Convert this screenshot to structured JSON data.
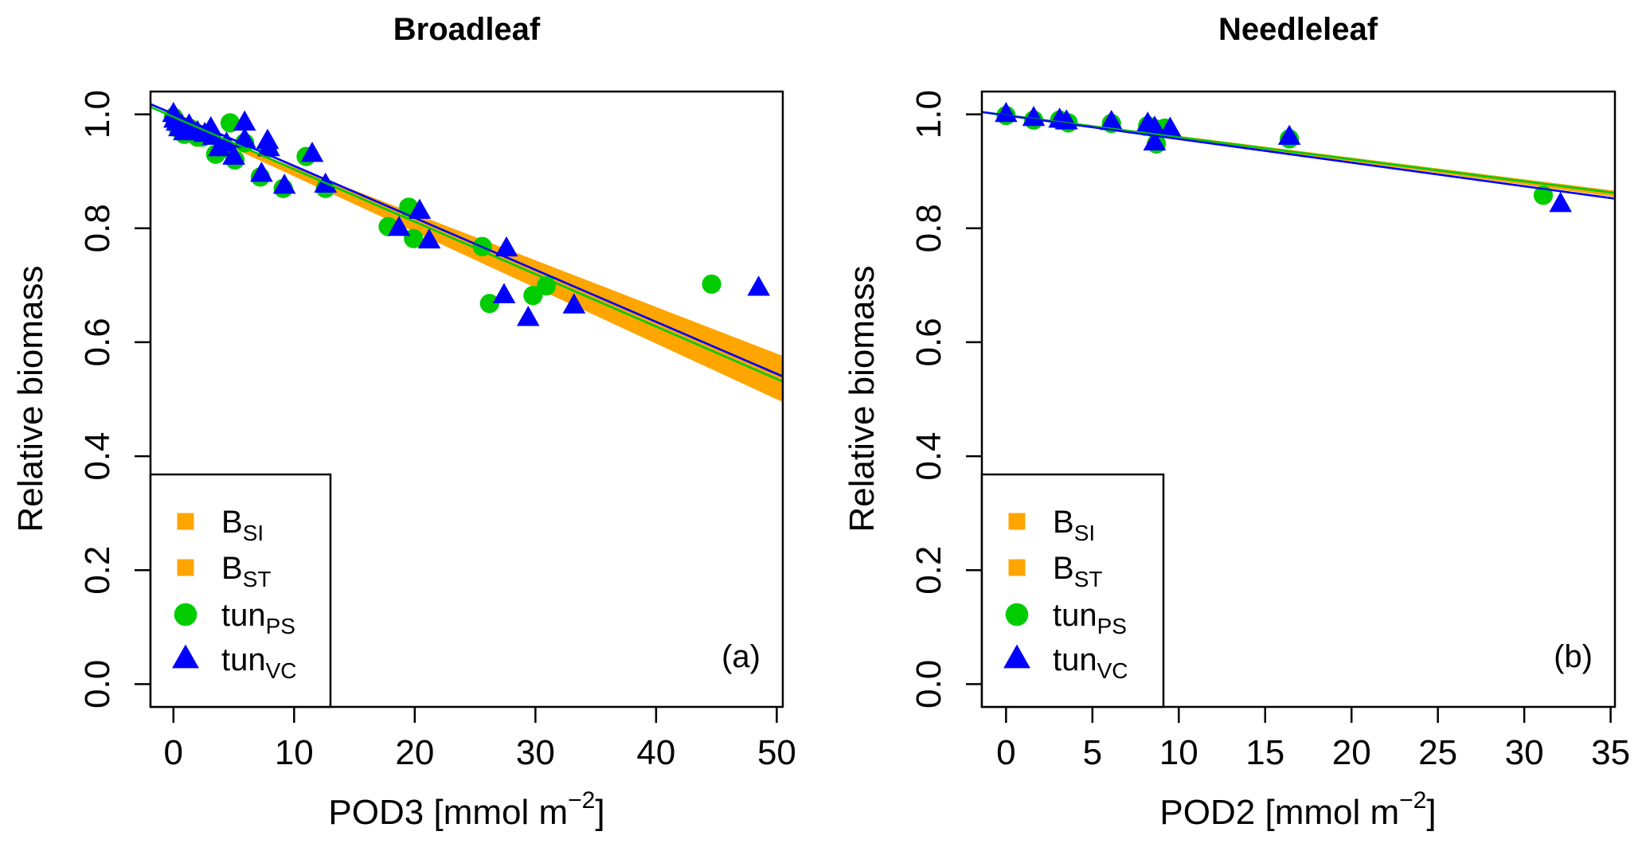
{
  "chart_data": [
    {
      "type": "scatter",
      "panel_id": "a",
      "title": "Broadleaf",
      "panel_tag": "(a)",
      "xlabel": "POD3 [mmol m",
      "xlabel_sup": "−2",
      "xlabel_end": "]",
      "ylabel": "Relative biomass",
      "xlim": [
        -1.9,
        50.5
      ],
      "ylim": [
        -0.04,
        1.04
      ],
      "xticks": [
        0,
        10,
        20,
        30,
        40,
        50
      ],
      "yticks": [
        0.0,
        0.2,
        0.4,
        0.6,
        0.8,
        1.0
      ],
      "ytick_labels": [
        "0.0",
        "0.2",
        "0.4",
        "0.6",
        "0.8",
        "1.0"
      ],
      "grid": false,
      "legend_position": "bottom-left",
      "legend": [
        {
          "label": "B",
          "sub": "SI",
          "marker": "square",
          "color": "#FFA500"
        },
        {
          "label": "B",
          "sub": "ST",
          "marker": "square",
          "color": "#FFA500"
        },
        {
          "label": "tun",
          "sub": "PS",
          "marker": "circle",
          "color": "#00CC00"
        },
        {
          "label": "tun",
          "sub": "VC",
          "marker": "triangle",
          "color": "#0000FF"
        }
      ],
      "band": {
        "name": "B range (B_SI to B_ST)",
        "color": "#FFA500",
        "x": [
          4.2,
          50.5
        ],
        "upper": [
          0.955,
          0.576
        ],
        "lower": [
          0.948,
          0.495
        ]
      },
      "fit_lines": [
        {
          "name": "tun_PS fit",
          "color": "#00CC00",
          "x": [
            -1.9,
            50.5
          ],
          "y": [
            1.013,
            0.531
          ]
        },
        {
          "name": "tun_VC fit",
          "color": "#0000FF",
          "x": [
            -1.9,
            50.5
          ],
          "y": [
            1.018,
            0.54
          ]
        }
      ],
      "series": [
        {
          "name": "tun_PS",
          "marker": "circle",
          "color": "#00CC00",
          "points": [
            [
              0.0,
              0.995
            ],
            [
              0.2,
              0.985
            ],
            [
              0.4,
              0.975
            ],
            [
              0.6,
              0.98
            ],
            [
              0.9,
              0.965
            ],
            [
              1.4,
              0.975
            ],
            [
              2.0,
              0.96
            ],
            [
              2.4,
              0.96
            ],
            [
              3.0,
              0.965
            ],
            [
              3.5,
              0.93
            ],
            [
              4.2,
              0.94
            ],
            [
              4.7,
              0.985
            ],
            [
              5.1,
              0.92
            ],
            [
              5.9,
              0.95
            ],
            [
              7.2,
              0.89
            ],
            [
              7.8,
              0.94
            ],
            [
              9.1,
              0.87
            ],
            [
              11.0,
              0.926
            ],
            [
              12.6,
              0.87
            ],
            [
              17.8,
              0.803
            ],
            [
              19.5,
              0.837
            ],
            [
              19.9,
              0.782
            ],
            [
              25.6,
              0.768
            ],
            [
              26.2,
              0.668
            ],
            [
              29.8,
              0.682
            ],
            [
              30.9,
              0.699
            ],
            [
              44.6,
              0.702
            ]
          ]
        },
        {
          "name": "tun_VC",
          "marker": "triangle",
          "color": "#0000FF",
          "points": [
            [
              0.0,
              1.0
            ],
            [
              0.1,
              0.99
            ],
            [
              0.3,
              0.985
            ],
            [
              0.5,
              0.975
            ],
            [
              0.7,
              0.98
            ],
            [
              0.9,
              0.968
            ],
            [
              1.3,
              0.98
            ],
            [
              2.0,
              0.968
            ],
            [
              2.6,
              0.965
            ],
            [
              3.1,
              0.975
            ],
            [
              3.3,
              0.96
            ],
            [
              3.8,
              0.94
            ],
            [
              4.4,
              0.948
            ],
            [
              5.0,
              0.925
            ],
            [
              5.9,
              0.985
            ],
            [
              5.9,
              0.955
            ],
            [
              7.3,
              0.895
            ],
            [
              7.8,
              0.953
            ],
            [
              7.9,
              0.94
            ],
            [
              9.2,
              0.874
            ],
            [
              11.5,
              0.93
            ],
            [
              12.6,
              0.876
            ],
            [
              18.7,
              0.8
            ],
            [
              20.4,
              0.83
            ],
            [
              21.2,
              0.778
            ],
            [
              27.4,
              0.682
            ],
            [
              27.6,
              0.764
            ],
            [
              29.4,
              0.642
            ],
            [
              33.2,
              0.664
            ],
            [
              48.5,
              0.695
            ]
          ]
        }
      ]
    },
    {
      "type": "scatter",
      "panel_id": "b",
      "title": "Needleleaf",
      "panel_tag": "(b)",
      "xlabel": "POD2 [mmol m",
      "xlabel_sup": "−2",
      "xlabel_end": "]",
      "ylabel": "Relative biomass",
      "xlim": [
        -1.4,
        35.25
      ],
      "ylim": [
        -0.04,
        1.04
      ],
      "xticks": [
        0,
        5,
        10,
        15,
        20,
        25,
        30,
        35
      ],
      "yticks": [
        0.0,
        0.2,
        0.4,
        0.6,
        0.8,
        1.0
      ],
      "ytick_labels": [
        "0.0",
        "0.2",
        "0.4",
        "0.6",
        "0.8",
        "1.0"
      ],
      "grid": false,
      "legend_position": "bottom-left",
      "legend": [
        {
          "label": "B",
          "sub": "SI",
          "marker": "square",
          "color": "#FFA500"
        },
        {
          "label": "B",
          "sub": "ST",
          "marker": "square",
          "color": "#FFA500"
        },
        {
          "label": "tun",
          "sub": "PS",
          "marker": "circle",
          "color": "#00CC00"
        },
        {
          "label": "tun",
          "sub": "VC",
          "marker": "triangle",
          "color": "#0000FF"
        }
      ],
      "band": {
        "name": "B range (B_SI to B_ST)",
        "color": "#FFA500",
        "x": [
          9.0,
          35.25
        ],
        "upper": [
          0.966,
          0.866
        ],
        "lower": [
          0.962,
          0.855
        ]
      },
      "fit_lines": [
        {
          "name": "tun_PS fit",
          "color": "#00CC00",
          "x": [
            -1.4,
            35.25
          ],
          "y": [
            1.004,
            0.862
          ]
        },
        {
          "name": "tun_VC fit",
          "color": "#0000FF",
          "x": [
            -1.4,
            35.25
          ],
          "y": [
            1.004,
            0.852
          ]
        }
      ],
      "series": [
        {
          "name": "tun_PS",
          "marker": "circle",
          "color": "#00CC00",
          "points": [
            [
              0.0,
              0.998
            ],
            [
              1.6,
              0.99
            ],
            [
              3.1,
              0.99
            ],
            [
              3.6,
              0.985
            ],
            [
              6.1,
              0.984
            ],
            [
              8.2,
              0.98
            ],
            [
              8.6,
              0.975
            ],
            [
              8.7,
              0.948
            ],
            [
              9.2,
              0.976
            ],
            [
              16.4,
              0.957
            ],
            [
              31.1,
              0.858
            ]
          ]
        },
        {
          "name": "tun_VC",
          "marker": "triangle",
          "color": "#0000FF",
          "points": [
            [
              0.0,
              1.0
            ],
            [
              1.6,
              0.993
            ],
            [
              3.1,
              0.99
            ],
            [
              3.5,
              0.987
            ],
            [
              6.1,
              0.986
            ],
            [
              8.2,
              0.983
            ],
            [
              8.6,
              0.976
            ],
            [
              8.6,
              0.95
            ],
            [
              9.5,
              0.974
            ],
            [
              16.4,
              0.96
            ],
            [
              32.1,
              0.842
            ]
          ]
        }
      ]
    }
  ]
}
